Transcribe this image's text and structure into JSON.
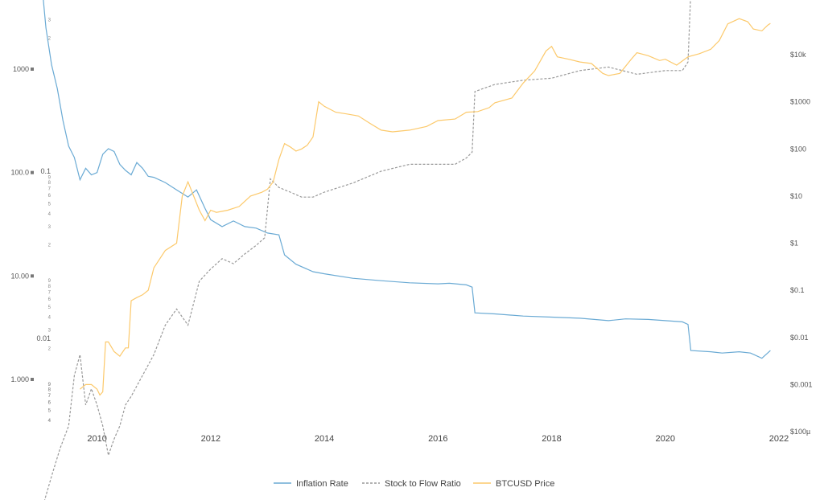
{
  "chart_data": {
    "type": "line",
    "title": "",
    "x_ticks": [
      "2010",
      "2012",
      "2014",
      "2016",
      "2018",
      "2020",
      "2022"
    ],
    "x_range": [
      2009.0,
      2022.0
    ],
    "y_left_ticks": [
      {
        "value": 1000,
        "label": "1000"
      },
      {
        "value": 100,
        "label": "100.0"
      },
      {
        "value": 10,
        "label": "10.00"
      },
      {
        "value": 1,
        "label": "1.000"
      }
    ],
    "y_left_minor_labels": [
      "8",
      "7",
      "6",
      "5",
      "4",
      "3",
      "2",
      "2",
      "3",
      "4",
      "5",
      "6",
      "7",
      "8",
      "9",
      "2",
      "3",
      "4",
      "5",
      "6",
      "7",
      "8",
      "9",
      "2",
      "3",
      "4",
      "5",
      "6",
      "7",
      "8",
      "9",
      "3",
      "4",
      "5",
      "6",
      "7",
      "8",
      "9",
      "2",
      "3"
    ],
    "y_left_secondary_labels": [
      {
        "value": 0.1,
        "label": "0.1"
      },
      {
        "value": 0.01,
        "label": "0.01"
      }
    ],
    "y_right_ticks": [
      "$10k",
      "$1000",
      "$100",
      "$10",
      "$1",
      "$0.1",
      "$0.01",
      "$0.001",
      "$100µ"
    ],
    "y_right_scale": "log",
    "series": [
      {
        "name": "Inflation Rate",
        "color": "#6aaad4",
        "axis": "left-log",
        "points": [
          [
            2009.05,
            5000
          ],
          [
            2009.1,
            2500
          ],
          [
            2009.2,
            1100
          ],
          [
            2009.3,
            650
          ],
          [
            2009.4,
            320
          ],
          [
            2009.5,
            180
          ],
          [
            2009.6,
            140
          ],
          [
            2009.7,
            85
          ],
          [
            2009.8,
            110
          ],
          [
            2009.9,
            95
          ],
          [
            2010.0,
            100
          ],
          [
            2010.1,
            150
          ],
          [
            2010.2,
            170
          ],
          [
            2010.3,
            160
          ],
          [
            2010.4,
            120
          ],
          [
            2010.5,
            105
          ],
          [
            2010.6,
            95
          ],
          [
            2010.7,
            125
          ],
          [
            2010.8,
            110
          ],
          [
            2010.9,
            92
          ],
          [
            2011.0,
            90
          ],
          [
            2011.2,
            80
          ],
          [
            2011.4,
            68
          ],
          [
            2011.6,
            58
          ],
          [
            2011.75,
            68
          ],
          [
            2011.9,
            45
          ],
          [
            2012.0,
            35
          ],
          [
            2012.2,
            30
          ],
          [
            2012.4,
            34
          ],
          [
            2012.6,
            30
          ],
          [
            2012.8,
            29
          ],
          [
            2013.0,
            26
          ],
          [
            2013.2,
            25
          ],
          [
            2013.3,
            16
          ],
          [
            2013.5,
            13
          ],
          [
            2013.8,
            11
          ],
          [
            2014.0,
            10.5
          ],
          [
            2014.5,
            9.5
          ],
          [
            2015.0,
            9.0
          ],
          [
            2015.5,
            8.6
          ],
          [
            2016.0,
            8.4
          ],
          [
            2016.2,
            8.5
          ],
          [
            2016.5,
            8.2
          ],
          [
            2016.6,
            7.8
          ],
          [
            2016.65,
            4.4
          ],
          [
            2017.0,
            4.3
          ],
          [
            2017.5,
            4.1
          ],
          [
            2018.0,
            4.0
          ],
          [
            2018.5,
            3.9
          ],
          [
            2019.0,
            3.7
          ],
          [
            2019.3,
            3.85
          ],
          [
            2019.7,
            3.8
          ],
          [
            2020.0,
            3.7
          ],
          [
            2020.3,
            3.6
          ],
          [
            2020.4,
            3.4
          ],
          [
            2020.45,
            1.9
          ],
          [
            2020.8,
            1.85
          ],
          [
            2021.0,
            1.8
          ],
          [
            2021.3,
            1.85
          ],
          [
            2021.5,
            1.8
          ],
          [
            2021.7,
            1.6
          ],
          [
            2021.85,
            1.9
          ]
        ]
      },
      {
        "name": "Stock to Flow Ratio",
        "color": "#999999",
        "axis": "left-log",
        "dashed": true,
        "points": [
          [
            2009.05,
            0.001
          ],
          [
            2009.2,
            0.0015
          ],
          [
            2009.35,
            0.0022
          ],
          [
            2009.5,
            0.003
          ],
          [
            2009.6,
            0.006
          ],
          [
            2009.7,
            0.008
          ],
          [
            2009.8,
            0.004
          ],
          [
            2009.9,
            0.005
          ],
          [
            2010.0,
            0.004
          ],
          [
            2010.1,
            0.003
          ],
          [
            2010.2,
            0.002
          ],
          [
            2010.3,
            0.0025
          ],
          [
            2010.4,
            0.003
          ],
          [
            2010.5,
            0.004
          ],
          [
            2010.6,
            0.0045
          ],
          [
            2010.8,
            0.006
          ],
          [
            2011.0,
            0.008
          ],
          [
            2011.2,
            0.012
          ],
          [
            2011.4,
            0.015
          ],
          [
            2011.6,
            0.012
          ],
          [
            2011.8,
            0.022
          ],
          [
            2012.0,
            0.026
          ],
          [
            2012.2,
            0.03
          ],
          [
            2012.4,
            0.028
          ],
          [
            2012.6,
            0.032
          ],
          [
            2012.8,
            0.036
          ],
          [
            2012.95,
            0.04
          ],
          [
            2013.05,
            0.09
          ],
          [
            2013.2,
            0.08
          ],
          [
            2013.4,
            0.075
          ],
          [
            2013.6,
            0.07
          ],
          [
            2013.8,
            0.07
          ],
          [
            2014.0,
            0.075
          ],
          [
            2014.5,
            0.085
          ],
          [
            2015.0,
            0.1
          ],
          [
            2015.5,
            0.11
          ],
          [
            2016.0,
            0.11
          ],
          [
            2016.3,
            0.11
          ],
          [
            2016.5,
            0.12
          ],
          [
            2016.6,
            0.13
          ],
          [
            2016.65,
            0.3
          ],
          [
            2017.0,
            0.33
          ],
          [
            2017.5,
            0.35
          ],
          [
            2018.0,
            0.36
          ],
          [
            2018.5,
            0.4
          ],
          [
            2019.0,
            0.42
          ],
          [
            2019.5,
            0.38
          ],
          [
            2020.0,
            0.4
          ],
          [
            2020.3,
            0.4
          ],
          [
            2020.4,
            0.45
          ],
          [
            2020.45,
            1.2
          ],
          [
            2020.8,
            1.3
          ],
          [
            2021.0,
            1.35
          ],
          [
            2021.3,
            1.4
          ],
          [
            2021.5,
            1.4
          ],
          [
            2021.7,
            1.5
          ],
          [
            2021.8,
            1.7
          ],
          [
            2021.85,
            1.3
          ]
        ]
      },
      {
        "name": "BTCUSD Price",
        "color": "#fcc96b",
        "axis": "right-log",
        "points": [
          [
            2009.7,
            0.0008
          ],
          [
            2009.8,
            0.001
          ],
          [
            2009.9,
            0.001
          ],
          [
            2010.0,
            0.0008
          ],
          [
            2010.05,
            0.0006
          ],
          [
            2010.1,
            0.0007
          ],
          [
            2010.15,
            0.008
          ],
          [
            2010.2,
            0.008
          ],
          [
            2010.3,
            0.005
          ],
          [
            2010.4,
            0.004
          ],
          [
            2010.5,
            0.006
          ],
          [
            2010.55,
            0.006
          ],
          [
            2010.6,
            0.06
          ],
          [
            2010.7,
            0.07
          ],
          [
            2010.8,
            0.08
          ],
          [
            2010.9,
            0.1
          ],
          [
            2011.0,
            0.3
          ],
          [
            2011.2,
            0.7
          ],
          [
            2011.4,
            1.0
          ],
          [
            2011.5,
            10
          ],
          [
            2011.6,
            20
          ],
          [
            2011.8,
            5
          ],
          [
            2011.9,
            3
          ],
          [
            2012.0,
            5
          ],
          [
            2012.1,
            4.5
          ],
          [
            2012.3,
            5
          ],
          [
            2012.5,
            6
          ],
          [
            2012.7,
            10
          ],
          [
            2012.9,
            12
          ],
          [
            2013.0,
            14
          ],
          [
            2013.1,
            20
          ],
          [
            2013.2,
            60
          ],
          [
            2013.3,
            130
          ],
          [
            2013.4,
            110
          ],
          [
            2013.5,
            90
          ],
          [
            2013.6,
            100
          ],
          [
            2013.7,
            120
          ],
          [
            2013.8,
            180
          ],
          [
            2013.9,
            1000
          ],
          [
            2014.0,
            800
          ],
          [
            2014.2,
            600
          ],
          [
            2014.4,
            550
          ],
          [
            2014.6,
            500
          ],
          [
            2014.8,
            350
          ],
          [
            2015.0,
            250
          ],
          [
            2015.2,
            230
          ],
          [
            2015.5,
            250
          ],
          [
            2015.8,
            300
          ],
          [
            2016.0,
            400
          ],
          [
            2016.3,
            430
          ],
          [
            2016.5,
            600
          ],
          [
            2016.7,
            620
          ],
          [
            2016.9,
            750
          ],
          [
            2017.0,
            950
          ],
          [
            2017.3,
            1200
          ],
          [
            2017.5,
            2500
          ],
          [
            2017.7,
            4500
          ],
          [
            2017.9,
            12000
          ],
          [
            2018.0,
            15000
          ],
          [
            2018.1,
            9000
          ],
          [
            2018.3,
            8000
          ],
          [
            2018.5,
            7000
          ],
          [
            2018.7,
            6500
          ],
          [
            2018.9,
            4000
          ],
          [
            2019.0,
            3600
          ],
          [
            2019.2,
            4000
          ],
          [
            2019.4,
            8000
          ],
          [
            2019.5,
            11000
          ],
          [
            2019.7,
            9500
          ],
          [
            2019.9,
            7500
          ],
          [
            2020.0,
            8000
          ],
          [
            2020.2,
            6000
          ],
          [
            2020.4,
            9000
          ],
          [
            2020.6,
            10500
          ],
          [
            2020.8,
            13000
          ],
          [
            2020.95,
            20000
          ],
          [
            2021.1,
            45000
          ],
          [
            2021.3,
            58000
          ],
          [
            2021.45,
            50000
          ],
          [
            2021.55,
            35000
          ],
          [
            2021.7,
            32000
          ],
          [
            2021.8,
            42000
          ],
          [
            2021.85,
            46000
          ]
        ]
      }
    ],
    "legend": {
      "position": "bottom",
      "items": [
        {
          "label": "Inflation Rate",
          "color": "#6aaad4",
          "dashed": false
        },
        {
          "label": "Stock to Flow Ratio",
          "color": "#999999",
          "dashed": true
        },
        {
          "label": "BTCUSD Price",
          "color": "#fcc96b",
          "dashed": false
        }
      ]
    },
    "grid": false
  }
}
